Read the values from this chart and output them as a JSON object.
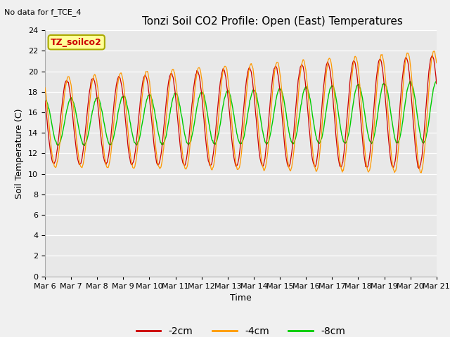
{
  "title": "Tonzi Soil CO2 Profile: Open (East) Temperatures",
  "no_data_text": "No data for f_TCE_4",
  "ylabel": "Soil Temperature (C)",
  "xlabel": "Time",
  "legend_label": "TZ_soilco2",
  "ylim": [
    0,
    24
  ],
  "yticks": [
    0,
    2,
    4,
    6,
    8,
    10,
    12,
    14,
    16,
    18,
    20,
    22,
    24
  ],
  "color_2cm": "#cc0000",
  "color_4cm": "#ff9900",
  "color_8cm": "#00cc00",
  "bg_color": "#e8e8e8",
  "plot_bg_color": "#e8e8e8",
  "fig_bg_color": "#f0f0f0",
  "legend_box_facecolor": "#ffff99",
  "legend_box_edgecolor": "#aaaa00",
  "label_2cm": "-2cm",
  "label_4cm": "-4cm",
  "label_8cm": "-8cm",
  "title_fontsize": 11,
  "axis_fontsize": 9,
  "tick_fontsize": 8,
  "nodata_fontsize": 8
}
